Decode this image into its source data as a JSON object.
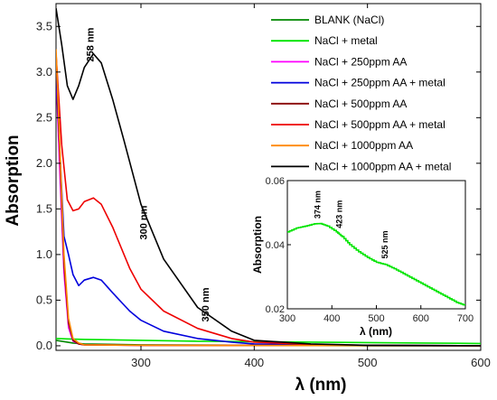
{
  "chart_data": [
    {
      "type": "line",
      "xlabel": "λ (nm)",
      "ylabel": "Absorption",
      "xlim": [
        225,
        600
      ],
      "ylim": [
        -0.05,
        3.75
      ],
      "xticks": [
        300,
        400,
        500,
        600
      ],
      "yticks": [
        0.0,
        0.5,
        1.0,
        1.5,
        2.0,
        2.5,
        3.0,
        3.5
      ],
      "ytick_labels": [
        "0.0",
        "0.5",
        "1.0",
        "1.5",
        "2.0",
        "2.5",
        "3.0",
        "3.5"
      ],
      "legend_position": "top-right",
      "annotations": [
        {
          "text": "258 nm",
          "x": 258,
          "y": 3.3,
          "rotation": -90
        },
        {
          "text": "300 nm",
          "x": 305,
          "y": 1.35,
          "rotation": -90
        },
        {
          "text": "350 nm",
          "x": 360,
          "y": 0.45,
          "rotation": -90
        }
      ],
      "series": [
        {
          "name": "BLANK (NaCl)",
          "color": "#008800",
          "x": [
            225,
            230,
            240,
            250,
            300,
            400,
            500,
            600
          ],
          "y": [
            0.06,
            0.05,
            0.03,
            0.02,
            0.01,
            0.005,
            0.0,
            0.0
          ]
        },
        {
          "name": "NaCl + metal",
          "color": "#00e400",
          "x": [
            225,
            250,
            300,
            350,
            400,
            450,
            500,
            550,
            600
          ],
          "y": [
            0.08,
            0.07,
            0.06,
            0.05,
            0.045,
            0.04,
            0.035,
            0.03,
            0.025
          ]
        },
        {
          "name": "NaCl + 250ppm AA",
          "color": "#ff00ff",
          "x": [
            225,
            228,
            232,
            236,
            240,
            245,
            250,
            300,
            600
          ],
          "y": [
            3.0,
            2.0,
            0.8,
            0.2,
            0.05,
            0.02,
            0.01,
            0.005,
            0.0
          ]
        },
        {
          "name": "NaCl + 250ppm AA + metal",
          "color": "#0000dd",
          "x": [
            225,
            232,
            236,
            240,
            245,
            250,
            258,
            265,
            275,
            290,
            300,
            320,
            350,
            380,
            400,
            450,
            500,
            600
          ],
          "y": [
            3.0,
            1.2,
            1.0,
            0.78,
            0.66,
            0.72,
            0.75,
            0.72,
            0.58,
            0.38,
            0.28,
            0.16,
            0.08,
            0.04,
            0.02,
            0.01,
            0.005,
            0.0
          ]
        },
        {
          "name": "NaCl + 500ppm AA",
          "color": "#880000",
          "x": [
            225,
            228,
            232,
            236,
            240,
            245,
            250,
            300,
            600
          ],
          "y": [
            3.2,
            2.2,
            0.9,
            0.25,
            0.06,
            0.02,
            0.01,
            0.005,
            0.0
          ]
        },
        {
          "name": "NaCl + 500ppm AA + metal",
          "color": "#ee0000",
          "x": [
            225,
            230,
            235,
            240,
            245,
            250,
            258,
            265,
            275,
            290,
            300,
            320,
            350,
            380,
            400,
            450,
            500,
            600
          ],
          "y": [
            3.2,
            2.2,
            1.6,
            1.48,
            1.5,
            1.58,
            1.62,
            1.55,
            1.3,
            0.85,
            0.62,
            0.38,
            0.19,
            0.08,
            0.04,
            0.015,
            0.005,
            0.0
          ]
        },
        {
          "name": "NaCl + 1000ppm AA",
          "color": "#ff8800",
          "x": [
            225,
            228,
            232,
            236,
            240,
            245,
            250,
            300,
            600
          ],
          "y": [
            3.25,
            2.3,
            1.0,
            0.3,
            0.08,
            0.03,
            0.01,
            0.005,
            0.0
          ]
        },
        {
          "name": "NaCl + 1000ppm AA + metal",
          "color": "#000000",
          "x": [
            225,
            230,
            235,
            240,
            245,
            250,
            258,
            265,
            275,
            285,
            300,
            320,
            350,
            380,
            400,
            450,
            500,
            600
          ],
          "y": [
            3.7,
            3.3,
            2.85,
            2.7,
            2.85,
            3.05,
            3.2,
            3.1,
            2.7,
            2.25,
            1.55,
            0.95,
            0.42,
            0.16,
            0.06,
            0.02,
            0.005,
            0.0
          ]
        }
      ]
    },
    {
      "type": "line",
      "xlabel": "λ (nm)",
      "ylabel": "Absorption",
      "xlim": [
        300,
        700
      ],
      "ylim": [
        0.02,
        0.06
      ],
      "xticks": [
        300,
        400,
        500,
        600,
        700
      ],
      "yticks": [
        0.02,
        0.04,
        0.06
      ],
      "ytick_labels": [
        "0.02",
        "0.04",
        "0.06"
      ],
      "annotations": [
        {
          "text": "374 nm",
          "x": 374,
          "y": 0.0525,
          "rotation": -90
        },
        {
          "text": "423 nm",
          "x": 423,
          "y": 0.0495,
          "rotation": -90
        },
        {
          "text": "525 nm",
          "x": 525,
          "y": 0.04,
          "rotation": -90
        }
      ],
      "series": [
        {
          "name": "NaCl + metal",
          "color": "#00e400",
          "x": [
            300,
            320,
            340,
            360,
            374,
            390,
            410,
            423,
            440,
            460,
            480,
            500,
            520,
            540,
            560,
            580,
            600,
            620,
            640,
            660,
            680,
            700
          ],
          "y": [
            0.044,
            0.0452,
            0.0458,
            0.0465,
            0.0466,
            0.0458,
            0.044,
            0.0425,
            0.04,
            0.0378,
            0.036,
            0.0345,
            0.0338,
            0.0325,
            0.031,
            0.0295,
            0.028,
            0.0265,
            0.025,
            0.0235,
            0.022,
            0.021
          ]
        }
      ]
    }
  ]
}
